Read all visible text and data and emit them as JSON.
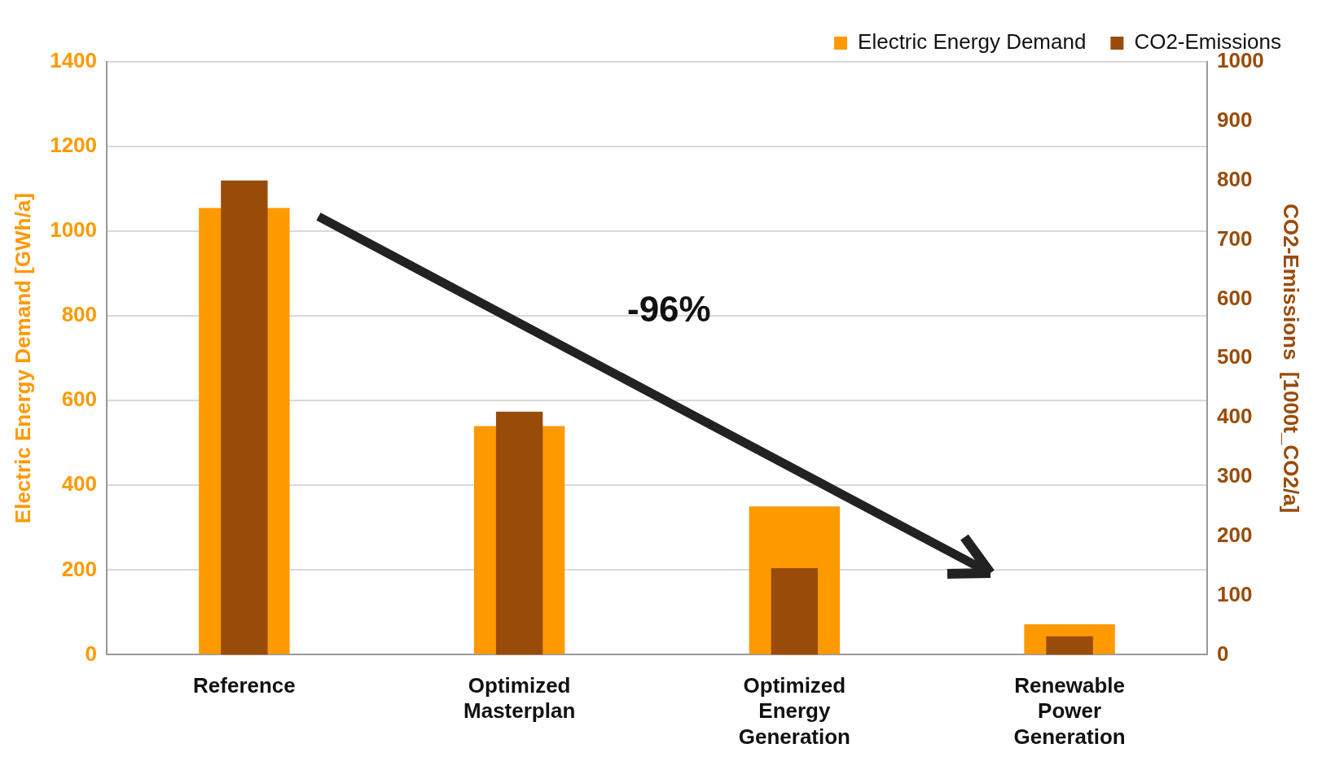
{
  "chart_data": {
    "type": "bar",
    "categories": [
      "Reference",
      "Optimized Masterplan",
      "Optimized Energy Generation",
      "Renewable Power Generation"
    ],
    "series": [
      {
        "name": "Electric Energy Demand",
        "color": "#ff9900",
        "values": [
          1055,
          540,
          350,
          72
        ]
      },
      {
        "name": "CO2-Emissions",
        "color": "#994c0a",
        "values": [
          800,
          410,
          146,
          31
        ],
        "axis": "y2"
      }
    ],
    "ylabel": "Electric Energy Demand [GWh/a]",
    "y2label": "CO2-Emissions  [1000t_CO2/a]",
    "ylim": [
      0,
      1400
    ],
    "yticks": [
      0,
      200,
      400,
      600,
      800,
      1000,
      1200,
      1400
    ],
    "y2lim": [
      0,
      1000
    ],
    "y2ticks": [
      0,
      100,
      200,
      300,
      400,
      500,
      600,
      700,
      800,
      900,
      1000
    ],
    "grid": "y",
    "legend": "top right",
    "annotations": [
      "-96%"
    ]
  }
}
